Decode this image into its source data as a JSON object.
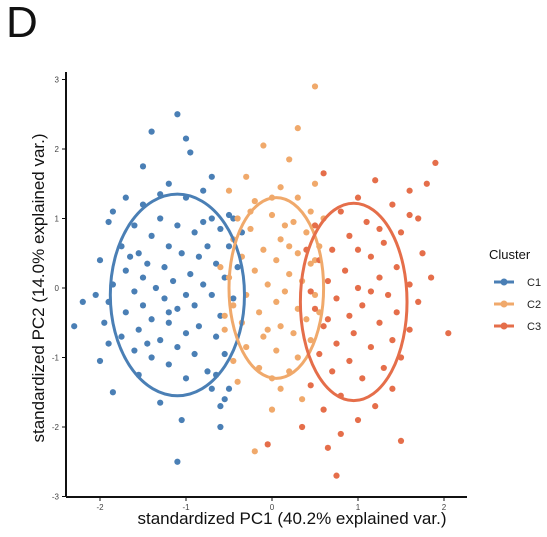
{
  "panel_label": "D",
  "chart_data": {
    "type": "scatter",
    "xlabel": "standardized PC1 (40.2% explained var.)",
    "ylabel": "standardized PC2 (14.0% explained var.)",
    "xlim": [
      -2.4,
      2.2
    ],
    "ylim": [
      -3,
      3.05
    ],
    "xticks": [
      -2,
      -1,
      0,
      1,
      2
    ],
    "yticks": [
      -3,
      -2,
      -1,
      0,
      1,
      2,
      3
    ],
    "grid": false,
    "legend": {
      "title": "Cluster",
      "position": "right"
    },
    "series": [
      {
        "name": "C1",
        "color": "#4A7FB5",
        "ellipse": {
          "cx": -1.1,
          "cy": -0.1,
          "rx": 0.78,
          "ry": 1.45
        },
        "points": [
          [
            -1.1,
            2.5
          ],
          [
            -1.4,
            2.25
          ],
          [
            -1.0,
            2.15
          ],
          [
            -0.95,
            1.95
          ],
          [
            -1.5,
            1.75
          ],
          [
            -0.7,
            1.6
          ],
          [
            -1.7,
            1.3
          ],
          [
            -1.2,
            1.5
          ],
          [
            -0.8,
            1.4
          ],
          [
            -1.0,
            1.3
          ],
          [
            -1.5,
            1.2
          ],
          [
            -1.85,
            1.1
          ],
          [
            -0.5,
            1.05
          ],
          [
            -0.7,
            1.0
          ],
          [
            -1.3,
            1.0
          ],
          [
            -1.6,
            0.9
          ],
          [
            -1.9,
            0.95
          ],
          [
            -1.1,
            0.9
          ],
          [
            -0.6,
            0.85
          ],
          [
            -0.9,
            0.8
          ],
          [
            -1.4,
            0.75
          ],
          [
            -1.75,
            0.6
          ],
          [
            -1.2,
            0.6
          ],
          [
            -0.75,
            0.6
          ],
          [
            -1.55,
            0.5
          ],
          [
            -1.05,
            0.5
          ],
          [
            -0.85,
            0.45
          ],
          [
            -2.0,
            0.4
          ],
          [
            -1.45,
            0.35
          ],
          [
            -0.65,
            0.35
          ],
          [
            -1.25,
            0.3
          ],
          [
            -1.7,
            0.25
          ],
          [
            -0.95,
            0.2
          ],
          [
            -1.5,
            0.15
          ],
          [
            -0.55,
            0.15
          ],
          [
            -1.15,
            0.1
          ],
          [
            -1.85,
            0.05
          ],
          [
            -0.8,
            0.05
          ],
          [
            -1.35,
            0.0
          ],
          [
            -1.6,
            -0.05
          ],
          [
            -2.05,
            -0.1
          ],
          [
            -1.0,
            -0.1
          ],
          [
            -0.7,
            -0.1
          ],
          [
            -1.25,
            -0.15
          ],
          [
            -1.9,
            -0.2
          ],
          [
            -1.5,
            -0.25
          ],
          [
            -0.9,
            -0.25
          ],
          [
            -2.2,
            -0.2
          ],
          [
            -1.1,
            -0.3
          ],
          [
            -1.7,
            -0.35
          ],
          [
            -0.6,
            -0.4
          ],
          [
            -1.4,
            -0.45
          ],
          [
            -1.95,
            -0.5
          ],
          [
            -1.2,
            -0.5
          ],
          [
            -0.85,
            -0.55
          ],
          [
            -2.3,
            -0.55
          ],
          [
            -1.55,
            -0.6
          ],
          [
            -1.0,
            -0.65
          ],
          [
            -1.75,
            -0.7
          ],
          [
            -1.3,
            -0.75
          ],
          [
            -0.65,
            -0.7
          ],
          [
            -1.1,
            -0.85
          ],
          [
            -1.6,
            -0.9
          ],
          [
            -1.9,
            -0.8
          ],
          [
            -0.9,
            -0.95
          ],
          [
            -1.4,
            -1.0
          ],
          [
            -2.0,
            -1.05
          ],
          [
            -1.2,
            -1.1
          ],
          [
            -0.75,
            -1.2
          ],
          [
            -1.55,
            -1.25
          ],
          [
            -1.0,
            -1.3
          ],
          [
            -0.7,
            -1.45
          ],
          [
            -1.85,
            -1.5
          ],
          [
            -1.3,
            -1.65
          ],
          [
            -0.6,
            -1.7
          ],
          [
            -1.05,
            -1.9
          ],
          [
            -0.6,
            -2.0
          ],
          [
            -1.1,
            -2.5
          ],
          [
            -0.45,
            1.0
          ],
          [
            -0.35,
            0.8
          ],
          [
            -0.5,
            0.6
          ],
          [
            -0.4,
            0.3
          ],
          [
            -0.45,
            -0.15
          ],
          [
            -0.55,
            -0.95
          ],
          [
            -0.65,
            -1.25
          ],
          [
            -0.55,
            -1.6
          ],
          [
            -0.5,
            -1.45
          ],
          [
            -1.3,
            1.35
          ],
          [
            -1.65,
            0.45
          ],
          [
            -1.2,
            -0.35
          ],
          [
            -0.8,
            0.95
          ],
          [
            -1.45,
            -0.8
          ]
        ]
      },
      {
        "name": "C2",
        "color": "#F0A96B",
        "ellipse": {
          "cx": 0.05,
          "cy": 0.0,
          "rx": 0.55,
          "ry": 1.3
        },
        "points": [
          [
            0.5,
            2.9
          ],
          [
            0.3,
            2.3
          ],
          [
            -0.1,
            2.05
          ],
          [
            0.2,
            1.85
          ],
          [
            -0.3,
            1.6
          ],
          [
            0.5,
            1.5
          ],
          [
            -0.5,
            1.4
          ],
          [
            0.1,
            1.45
          ],
          [
            0.3,
            1.3
          ],
          [
            -0.2,
            1.25
          ],
          [
            0.45,
            1.1
          ],
          [
            -0.4,
            1.0
          ],
          [
            0.0,
            1.05
          ],
          [
            0.25,
            0.95
          ],
          [
            -0.25,
            0.85
          ],
          [
            0.4,
            0.8
          ],
          [
            0.1,
            0.7
          ],
          [
            -0.45,
            0.7
          ],
          [
            0.55,
            0.6
          ],
          [
            -0.1,
            0.55
          ],
          [
            0.3,
            0.5
          ],
          [
            -0.35,
            0.45
          ],
          [
            0.05,
            0.4
          ],
          [
            0.45,
            0.35
          ],
          [
            -0.2,
            0.25
          ],
          [
            0.2,
            0.2
          ],
          [
            -0.5,
            0.15
          ],
          [
            0.35,
            0.1
          ],
          [
            -0.05,
            0.05
          ],
          [
            0.15,
            -0.05
          ],
          [
            -0.3,
            -0.1
          ],
          [
            0.5,
            -0.1
          ],
          [
            0.05,
            -0.2
          ],
          [
            -0.45,
            -0.25
          ],
          [
            0.3,
            -0.3
          ],
          [
            -0.15,
            -0.35
          ],
          [
            0.4,
            -0.45
          ],
          [
            -0.35,
            -0.5
          ],
          [
            0.1,
            -0.55
          ],
          [
            -0.55,
            -0.6
          ],
          [
            0.25,
            -0.65
          ],
          [
            -0.1,
            -0.7
          ],
          [
            0.45,
            -0.75
          ],
          [
            -0.3,
            -0.85
          ],
          [
            0.05,
            -0.9
          ],
          [
            0.3,
            -1.0
          ],
          [
            -0.45,
            -1.05
          ],
          [
            -0.15,
            -1.15
          ],
          [
            0.2,
            -1.2
          ],
          [
            -0.4,
            -1.35
          ],
          [
            0.1,
            -1.45
          ],
          [
            0.35,
            -1.6
          ],
          [
            0.0,
            -1.75
          ],
          [
            -0.2,
            -2.35
          ],
          [
            0.0,
            -1.3
          ],
          [
            0.2,
            0.6
          ],
          [
            -0.25,
            1.1
          ],
          [
            0.6,
            1.0
          ],
          [
            0.55,
            -0.35
          ],
          [
            -0.55,
            -0.4
          ],
          [
            0.15,
            0.9
          ],
          [
            -0.05,
            -0.6
          ],
          [
            0.5,
            0.4
          ],
          [
            -0.6,
            0.3
          ],
          [
            0.0,
            1.3
          ]
        ]
      },
      {
        "name": "C3",
        "color": "#E56E4A",
        "ellipse": {
          "cx": 0.95,
          "cy": -0.2,
          "rx": 0.62,
          "ry": 1.42
        },
        "points": [
          [
            1.9,
            1.8
          ],
          [
            1.8,
            1.5
          ],
          [
            1.6,
            1.4
          ],
          [
            1.2,
            1.55
          ],
          [
            0.6,
            1.65
          ],
          [
            1.0,
            1.3
          ],
          [
            1.4,
            1.2
          ],
          [
            0.8,
            1.1
          ],
          [
            1.7,
            1.0
          ],
          [
            1.1,
            0.95
          ],
          [
            0.5,
            0.9
          ],
          [
            1.5,
            0.8
          ],
          [
            0.9,
            0.75
          ],
          [
            1.3,
            0.65
          ],
          [
            0.7,
            0.55
          ],
          [
            1.75,
            0.5
          ],
          [
            1.15,
            0.45
          ],
          [
            0.55,
            0.4
          ],
          [
            1.45,
            0.3
          ],
          [
            0.85,
            0.25
          ],
          [
            1.25,
            0.15
          ],
          [
            0.65,
            0.1
          ],
          [
            1.6,
            0.05
          ],
          [
            1.0,
            0.0
          ],
          [
            0.45,
            -0.05
          ],
          [
            1.35,
            -0.1
          ],
          [
            0.75,
            -0.15
          ],
          [
            1.7,
            -0.2
          ],
          [
            1.05,
            -0.25
          ],
          [
            0.5,
            -0.3
          ],
          [
            1.45,
            -0.35
          ],
          [
            0.9,
            -0.4
          ],
          [
            1.25,
            -0.5
          ],
          [
            0.6,
            -0.55
          ],
          [
            1.6,
            -0.6
          ],
          [
            0.95,
            -0.65
          ],
          [
            1.4,
            -0.75
          ],
          [
            0.75,
            -0.8
          ],
          [
            1.15,
            -0.85
          ],
          [
            0.55,
            -0.95
          ],
          [
            1.5,
            -1.0
          ],
          [
            0.9,
            -1.05
          ],
          [
            1.3,
            -1.15
          ],
          [
            0.7,
            -1.2
          ],
          [
            1.05,
            -1.3
          ],
          [
            0.45,
            -1.4
          ],
          [
            1.4,
            -1.45
          ],
          [
            0.8,
            -1.55
          ],
          [
            1.2,
            -1.7
          ],
          [
            0.6,
            -1.75
          ],
          [
            1.0,
            -1.9
          ],
          [
            0.35,
            -2.0
          ],
          [
            1.5,
            -2.2
          ],
          [
            0.8,
            -2.1
          ],
          [
            0.65,
            -2.3
          ],
          [
            -0.05,
            -2.25
          ],
          [
            0.75,
            -2.7
          ],
          [
            2.05,
            -0.65
          ],
          [
            1.6,
            1.05
          ],
          [
            1.85,
            0.15
          ],
          [
            1.15,
            -0.05
          ],
          [
            0.4,
            0.55
          ],
          [
            1.25,
            0.85
          ],
          [
            0.65,
            -0.45
          ],
          [
            1.0,
            0.55
          ]
        ]
      }
    ]
  }
}
